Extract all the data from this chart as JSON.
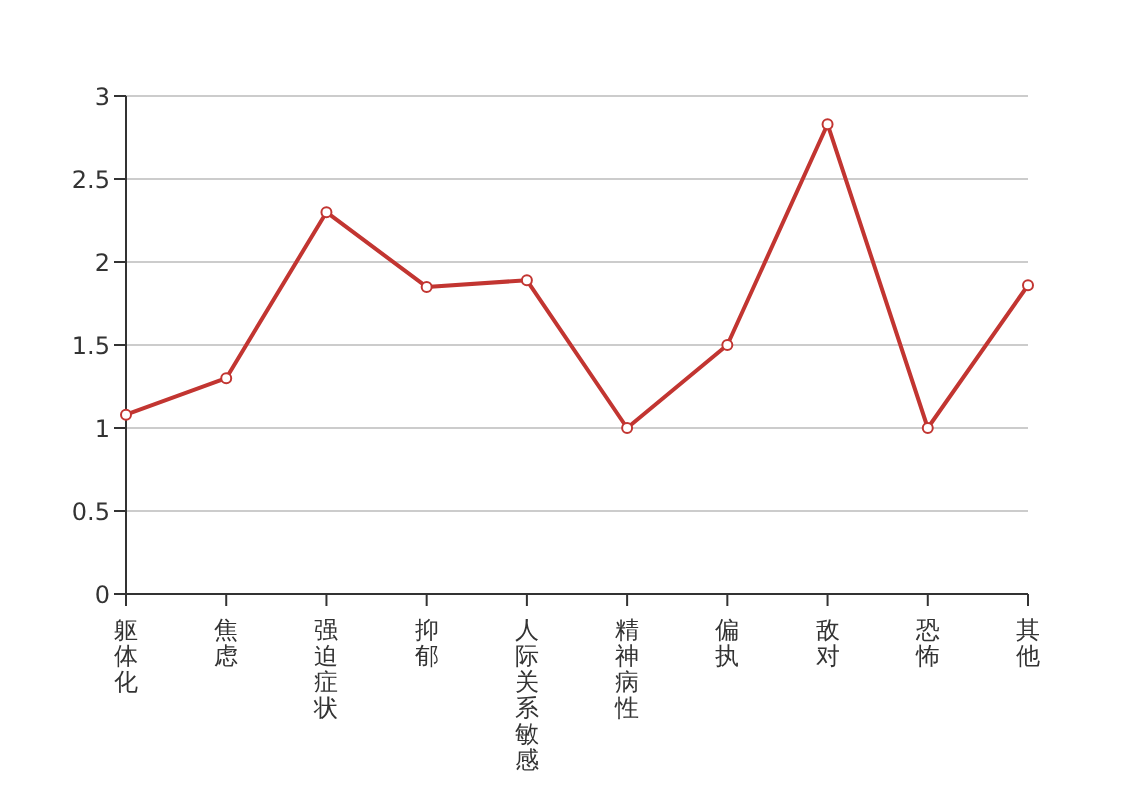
{
  "chart_data": {
    "type": "line",
    "categories": [
      "躯体化",
      "焦虑",
      "强迫症状",
      "抑郁",
      "人际关系敏感",
      "精神病性",
      "偏执",
      "敌对",
      "恐怖",
      "其他"
    ],
    "series": [
      {
        "color": "#c23531",
        "values": [
          1.08,
          1.3,
          2.3,
          1.85,
          1.89,
          1.0,
          1.5,
          2.83,
          1.0,
          1.86
        ]
      }
    ],
    "ylim": [
      0,
      3
    ],
    "yticks": [
      0,
      0.5,
      1,
      1.5,
      2,
      2.5,
      3
    ],
    "grid": "y",
    "marker": "circle",
    "line_style": "solid"
  }
}
